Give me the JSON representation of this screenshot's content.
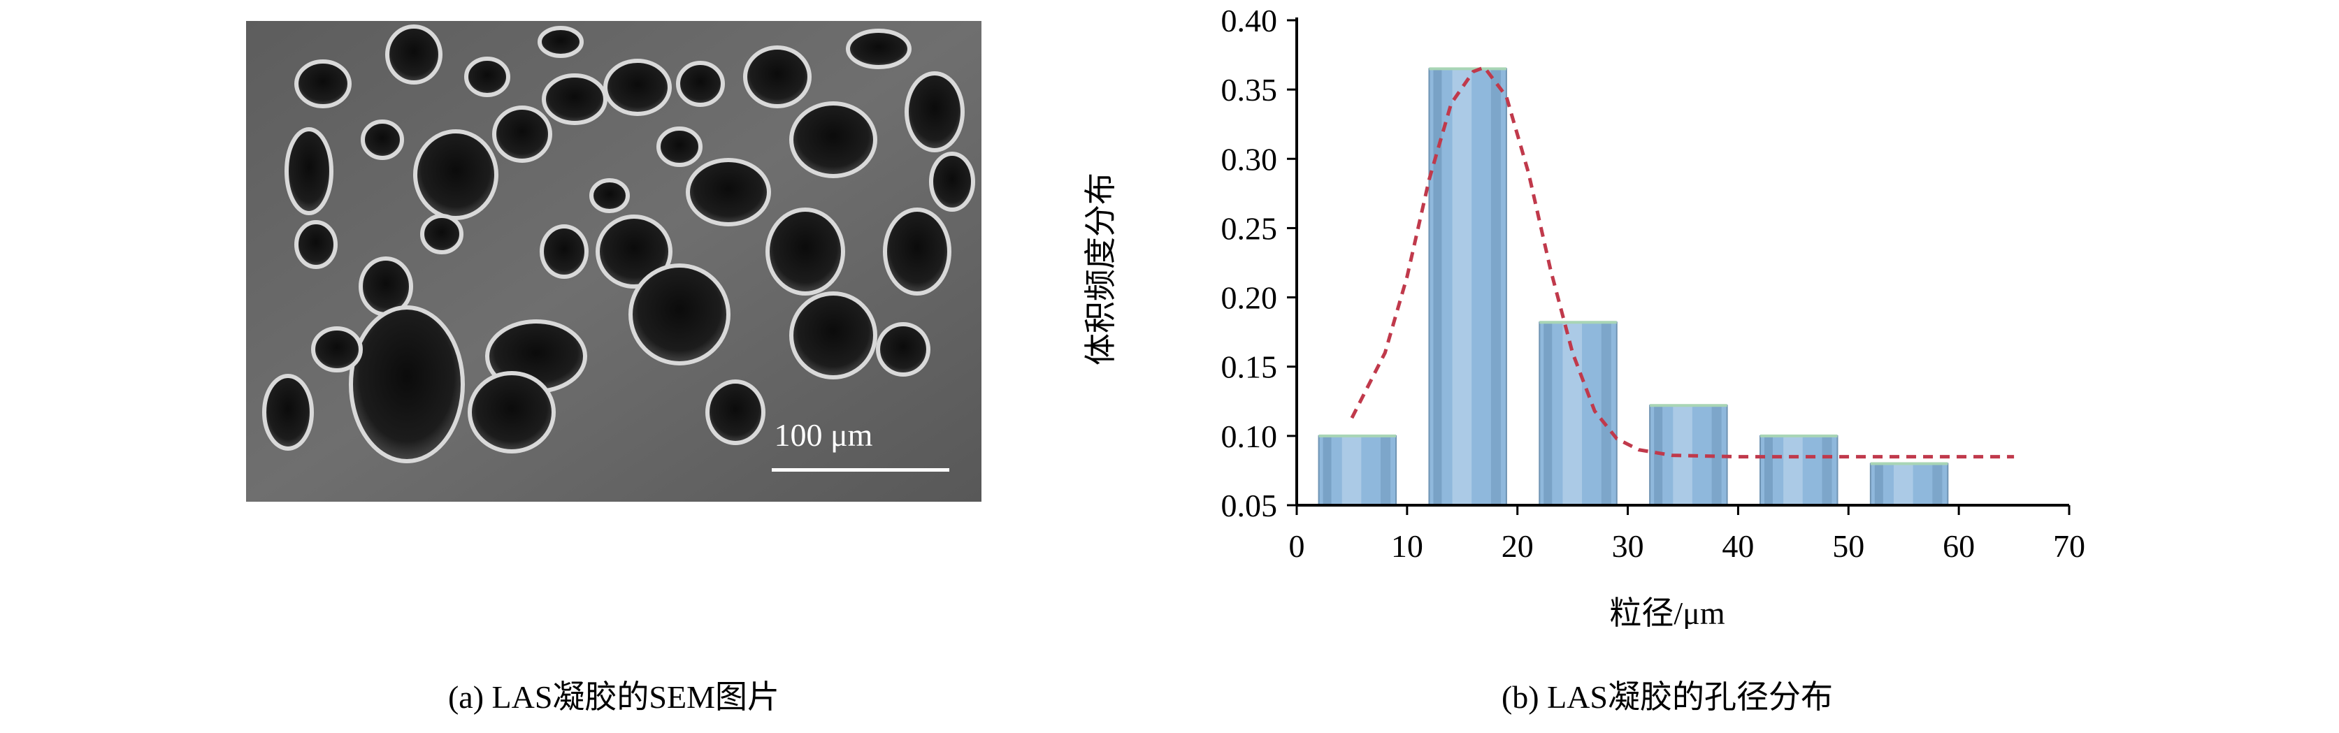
{
  "sem": {
    "scale_bar_label": "100 μm"
  },
  "captions": {
    "a": "(a) LAS凝胶的SEM图片",
    "b": "(b) LAS凝胶的孔径分布"
  },
  "chart_data": {
    "type": "bar",
    "xlabel": "粒径/μm",
    "ylabel": "体积频度分布",
    "xlim": [
      0,
      70
    ],
    "ylim": [
      0.05,
      0.4
    ],
    "xticks": [
      0,
      10,
      20,
      30,
      40,
      50,
      60,
      70
    ],
    "yticks": [
      "0.05",
      "0.10",
      "0.15",
      "0.20",
      "0.25",
      "0.30",
      "0.35",
      "0.40"
    ],
    "bars": [
      {
        "x0": 2,
        "x1": 9,
        "value": 0.1
      },
      {
        "x0": 12,
        "x1": 19,
        "value": 0.365
      },
      {
        "x0": 22,
        "x1": 29,
        "value": 0.182
      },
      {
        "x0": 32,
        "x1": 39,
        "value": 0.122
      },
      {
        "x0": 42,
        "x1": 49,
        "value": 0.1
      },
      {
        "x0": 52,
        "x1": 59,
        "value": 0.08
      }
    ],
    "fit_curve": {
      "style": "dashed",
      "color": "#c0394b",
      "points": [
        [
          5,
          0.113
        ],
        [
          8,
          0.16
        ],
        [
          10,
          0.215
        ],
        [
          12,
          0.285
        ],
        [
          14,
          0.34
        ],
        [
          16,
          0.363
        ],
        [
          17,
          0.366
        ],
        [
          19,
          0.345
        ],
        [
          21,
          0.29
        ],
        [
          23,
          0.22
        ],
        [
          25,
          0.16
        ],
        [
          27,
          0.118
        ],
        [
          29,
          0.098
        ],
        [
          31,
          0.09
        ],
        [
          34,
          0.086
        ],
        [
          40,
          0.085
        ],
        [
          50,
          0.085
        ],
        [
          65,
          0.085
        ]
      ]
    },
    "bar_color": "#8fb8dc",
    "grid": false,
    "legend": "none"
  }
}
